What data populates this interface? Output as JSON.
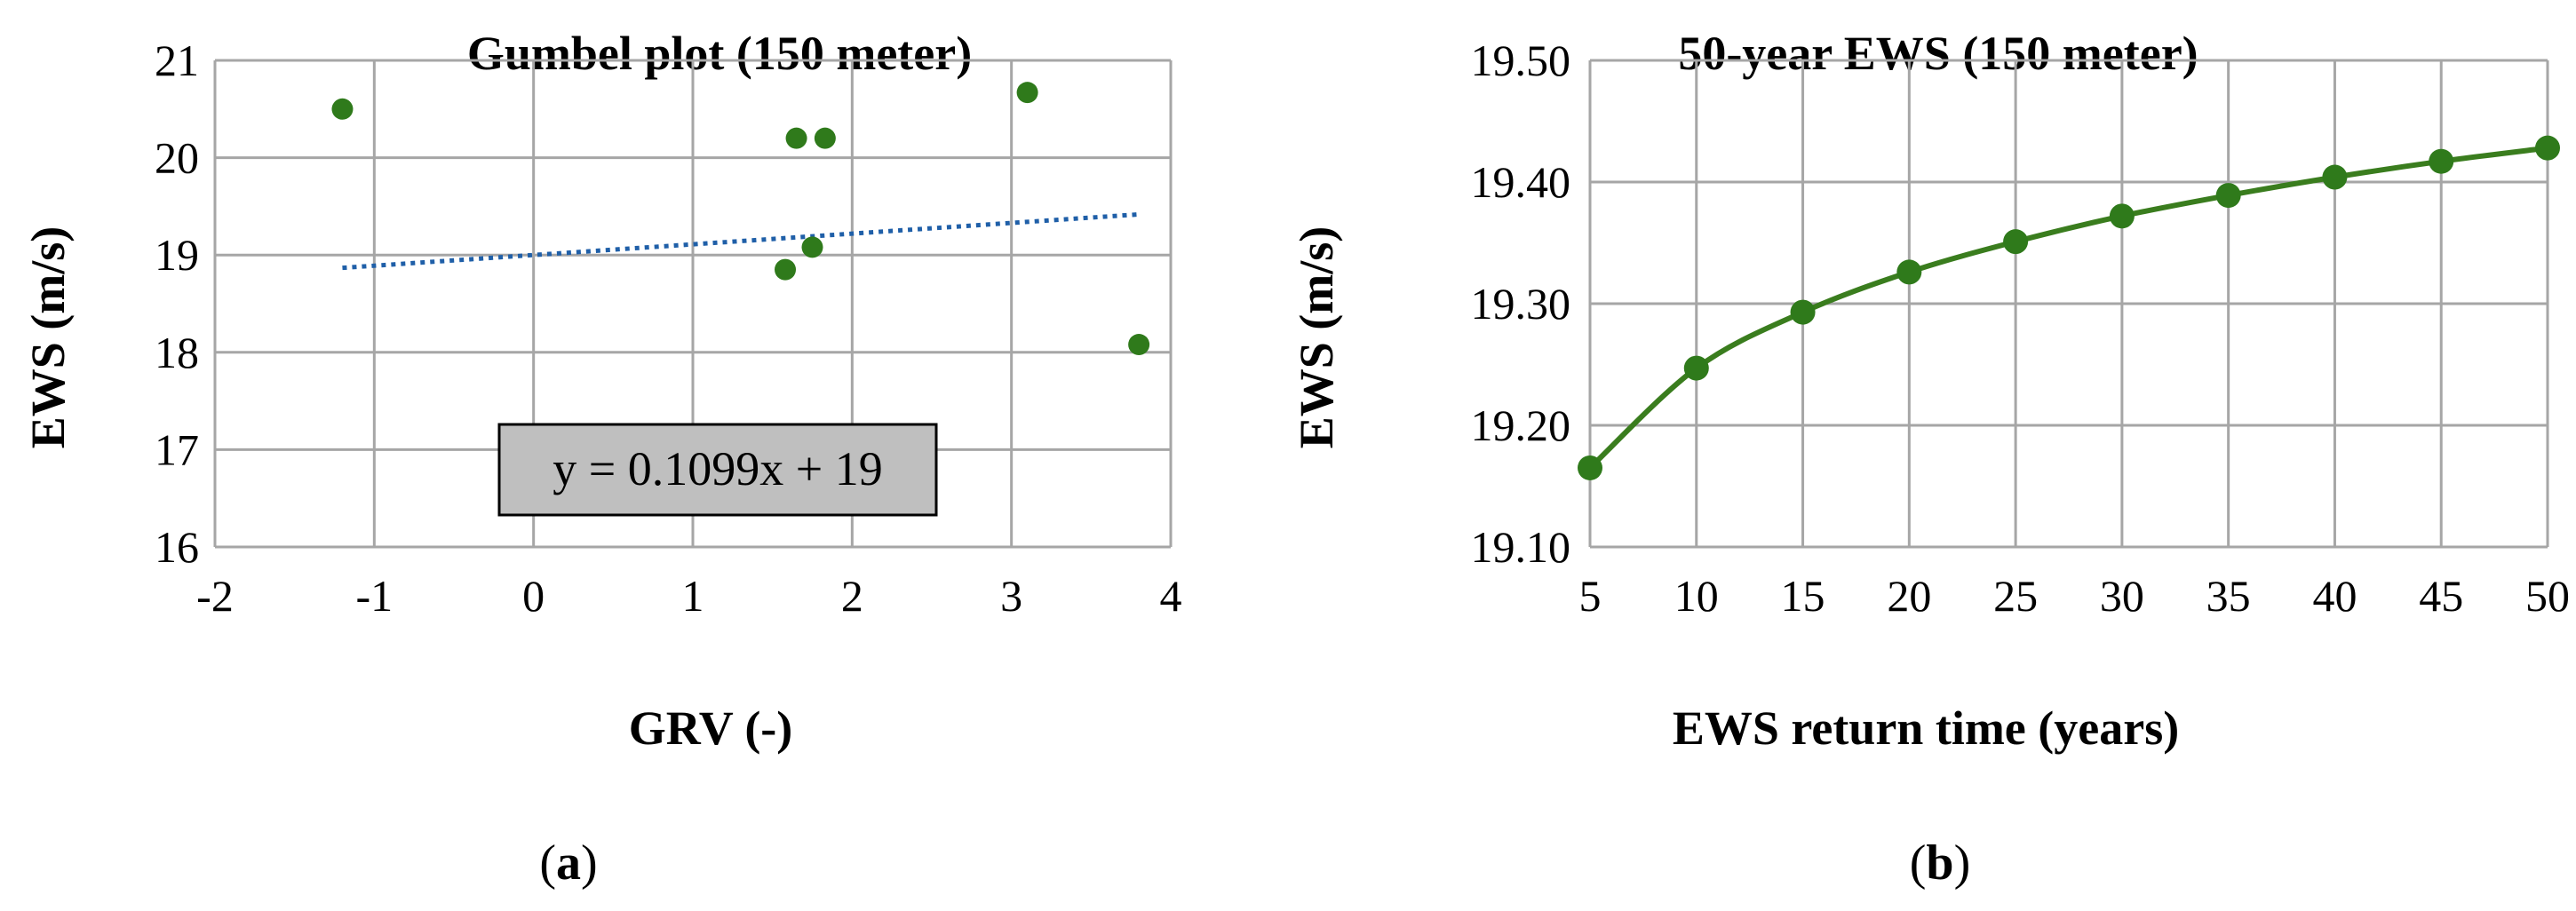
{
  "panels": [
    {
      "open": "(",
      "letter": "a",
      "close": ")"
    },
    {
      "open": "(",
      "letter": "b",
      "close": ")"
    }
  ],
  "chart_data": [
    {
      "type": "scatter",
      "title": "Gumbel plot (150 meter)",
      "xlabel": "GRV (-)",
      "ylabel": "EWS (m/s)",
      "xlim": [
        -2,
        4
      ],
      "ylim": [
        16,
        21
      ],
      "xticks": [
        "-2",
        "-1",
        "0",
        "1",
        "2",
        "3",
        "4"
      ],
      "yticks": [
        "16",
        "17",
        "18",
        "19",
        "20",
        "21"
      ],
      "grid": true,
      "points": [
        {
          "x": -1.2,
          "y": 20.5
        },
        {
          "x": 1.58,
          "y": 18.85
        },
        {
          "x": 1.65,
          "y": 20.2
        },
        {
          "x": 1.75,
          "y": 19.08
        },
        {
          "x": 1.83,
          "y": 20.2
        },
        {
          "x": 3.1,
          "y": 20.67
        },
        {
          "x": 3.8,
          "y": 18.08
        }
      ],
      "trendline": {
        "slope": 0.1099,
        "intercept": 19,
        "x_range": [
          -1.2,
          3.8
        ],
        "style": "dotted"
      },
      "equation_label": "y = 0.1099x + 19",
      "colors": {
        "points": "#2f7a1b",
        "trendline": "#1f5fa8",
        "grid": "#a6a6a6",
        "label_box": "#bfbfbf"
      }
    },
    {
      "type": "line",
      "title": "50-year EWS (150 meter)",
      "xlabel": "EWS return time (years)",
      "ylabel": "EWS (m/s)",
      "categories": [
        "5",
        "10",
        "15",
        "20",
        "25",
        "30",
        "35",
        "40",
        "45",
        "50"
      ],
      "values": [
        19.165,
        19.247,
        19.293,
        19.326,
        19.351,
        19.372,
        19.389,
        19.404,
        19.417,
        19.428
      ],
      "ylim": [
        19.1,
        19.5
      ],
      "yticks": [
        "19.10",
        "19.20",
        "19.30",
        "19.40",
        "19.50"
      ],
      "grid": true,
      "markers": true,
      "colors": {
        "line": "#3a7d1e",
        "markers": "#2f7a1b",
        "grid": "#a6a6a6"
      }
    }
  ]
}
